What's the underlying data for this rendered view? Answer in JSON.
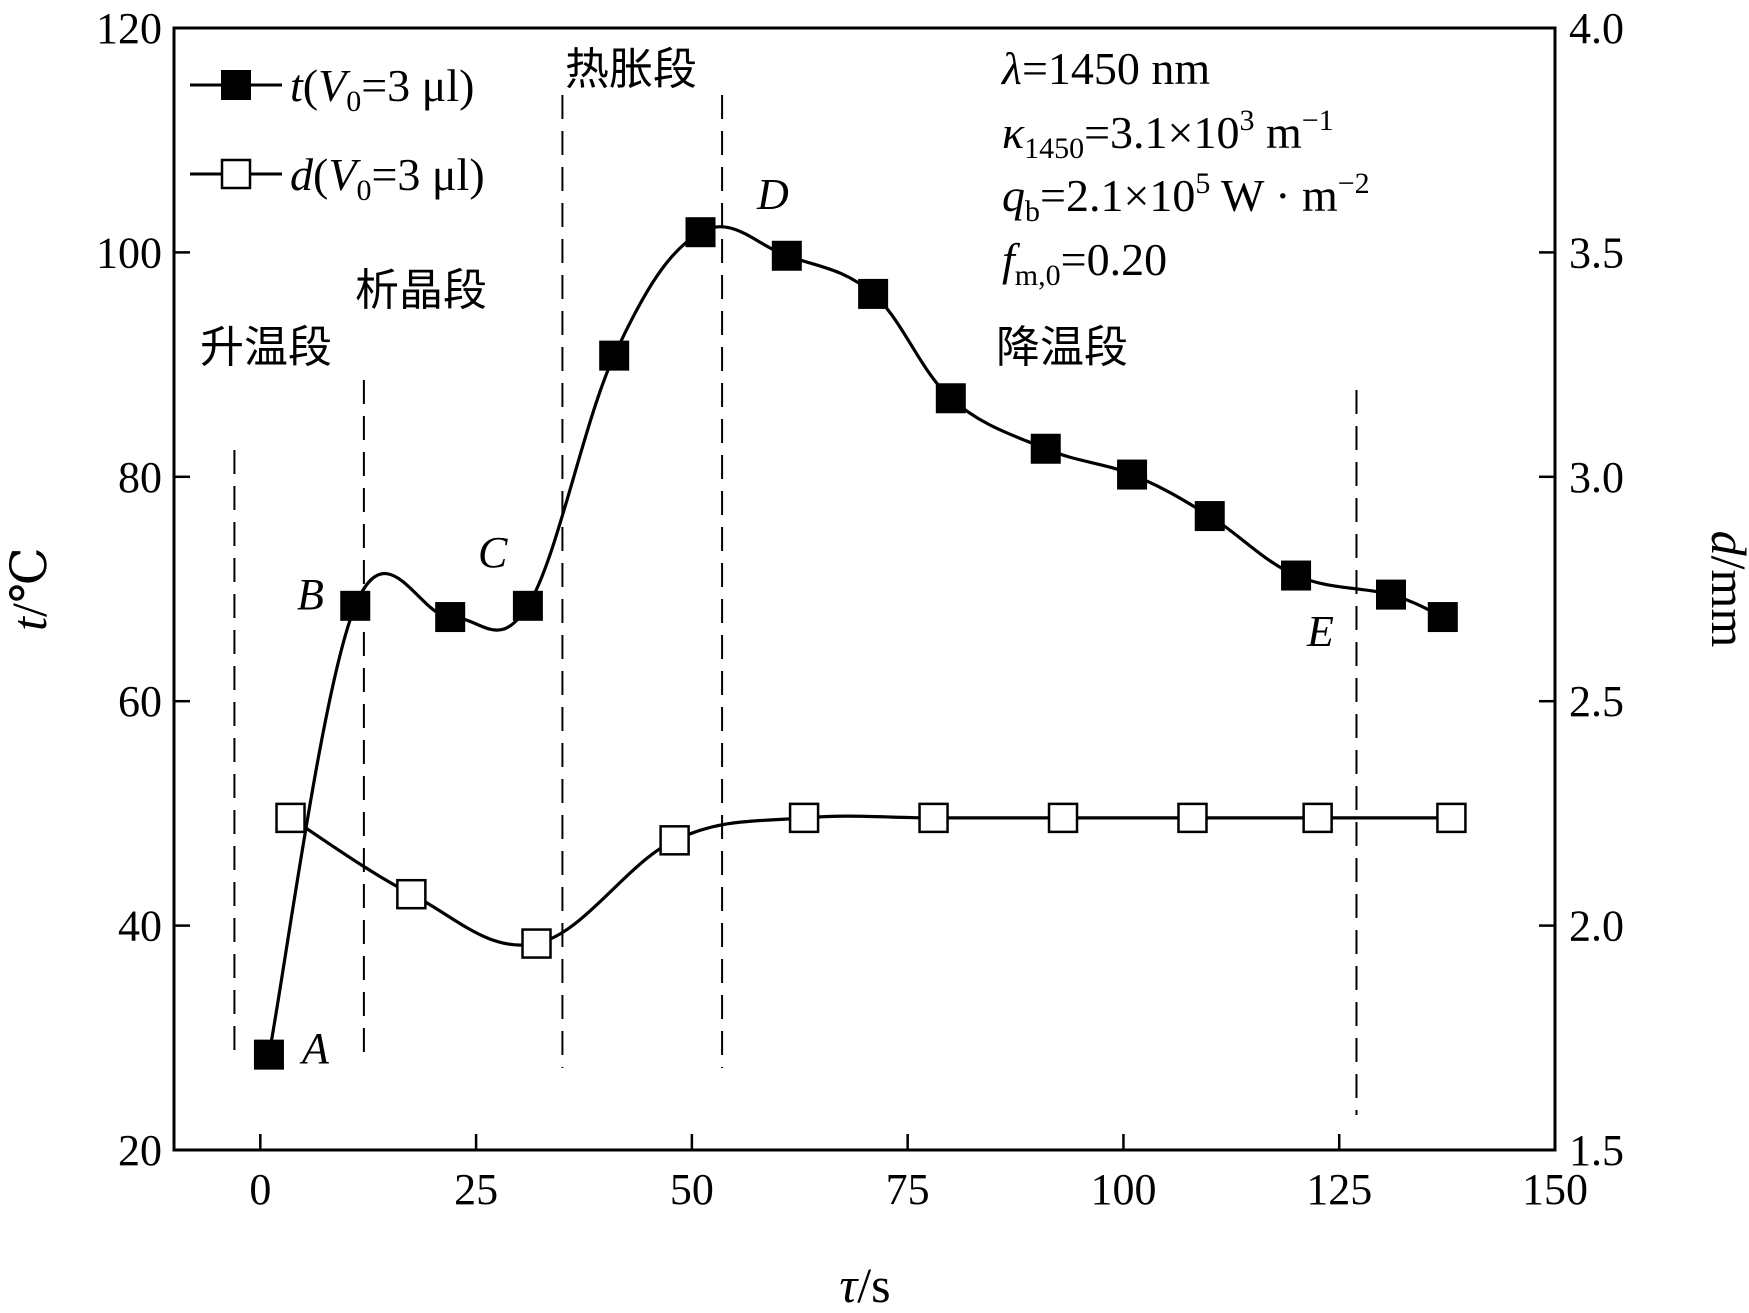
{
  "chart_data": {
    "type": "line",
    "x": {
      "label_symbol": "τ",
      "label_unit": "/s",
      "range": [
        -10,
        150
      ],
      "ticks": [
        0,
        25,
        50,
        75,
        100,
        125,
        150
      ]
    },
    "y_left": {
      "label_symbol": "t",
      "label_unit": "/℃",
      "range": [
        20,
        120
      ],
      "ticks": [
        20,
        40,
        60,
        80,
        100,
        120
      ]
    },
    "y_right": {
      "label_symbol": "d",
      "label_unit": "/mm",
      "range": [
        1.5,
        4.0
      ],
      "ticks": [
        "1.5",
        "2.0",
        "2.5",
        "3.0",
        "3.5",
        "4.0"
      ]
    },
    "series": [
      {
        "name": "t",
        "legend_label": "t(V0=3 μl)",
        "legend_parts": {
          "sym": "t",
          "open": "(",
          "var": "V",
          "sub": "0",
          "rest": "=3 μl)"
        },
        "axis": "left",
        "marker": "filled-square",
        "x": [
          1,
          11,
          22,
          31,
          41,
          51,
          61,
          71,
          80,
          91,
          101,
          110,
          120,
          131,
          137
        ],
        "y": [
          28.5,
          68.5,
          67.5,
          68.5,
          90.8,
          101.8,
          99.7,
          96.3,
          87.0,
          82.5,
          80.2,
          76.5,
          71.2,
          69.5,
          67.5
        ]
      },
      {
        "name": "d",
        "legend_label": "d(V0=3 μl)",
        "legend_parts": {
          "sym": "d",
          "open": "(",
          "var": "V",
          "sub": "0",
          "rest": "=3 μl)"
        },
        "axis": "right",
        "marker": "open-square",
        "x": [
          3.5,
          17.5,
          32,
          48,
          63,
          78,
          93,
          108,
          122.5,
          138
        ],
        "y": [
          2.24,
          2.07,
          1.96,
          2.19,
          2.24,
          2.24,
          2.24,
          2.24,
          2.24,
          2.24
        ]
      }
    ],
    "vlines_x": [
      -3,
      12,
      35,
      53.5,
      127
    ],
    "stage_labels": [
      "升温段",
      "析晶段",
      "热胀段",
      "降温段"
    ],
    "point_labels": [
      "A",
      "B",
      "C",
      "D",
      "E"
    ],
    "parameters": {
      "lambda": {
        "sym": "λ",
        "rest": "=1450 nm"
      },
      "kappa": {
        "sym": "κ",
        "sub": "1450",
        "mid": "=3.1×10",
        "sup": "3",
        "rest": " m",
        "sup2": "−1"
      },
      "qb": {
        "sym": "q",
        "sub": "b",
        "mid": "=2.1×10",
        "sup": "5",
        "rest": " W · m",
        "sup2": "−2"
      },
      "fm0": {
        "sym": "f",
        "sub": "m,0",
        "rest": "=0.20"
      }
    },
    "colors": {
      "line": "#000000",
      "background": "#ffffff"
    }
  }
}
